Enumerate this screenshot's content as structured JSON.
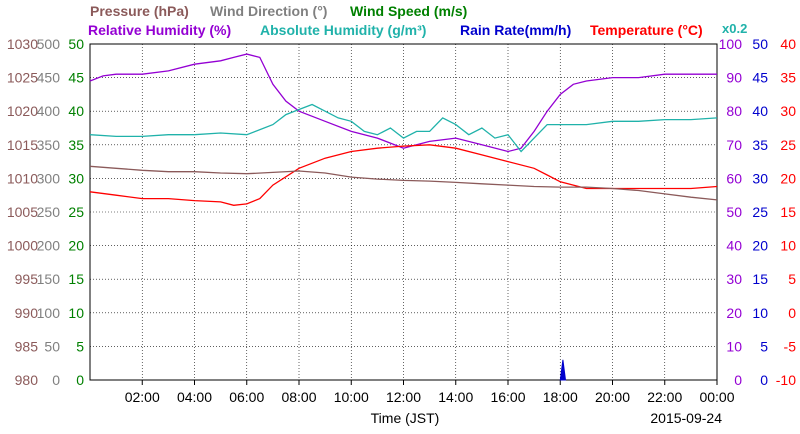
{
  "chart_data": {
    "type": "line",
    "legend": [
      {
        "label": "Pressure (hPa)",
        "color": "#8b5a5a"
      },
      {
        "label": "Wind Direction (°)",
        "color": "#808080"
      },
      {
        "label": "Wind Speed (m/s)",
        "color": "#008000"
      },
      {
        "label": "Relative Humidity (%)",
        "color": "#9400d3"
      },
      {
        "label": "Absolute Humidity (g/m³)",
        "color": "#20b2aa"
      },
      {
        "label": "Rain Rate(mm/h)",
        "color": "#0000cd"
      },
      {
        "label": "Temperature (°C)",
        "color": "#ff0000"
      }
    ],
    "abs_humidity_scale_note": "x0.2",
    "xlabel": "Time (JST)",
    "date": "2015-09-24",
    "x_range_hours": [
      0,
      24
    ],
    "x_ticks": [
      {
        "h": 2,
        "label": "02:00"
      },
      {
        "h": 4,
        "label": "04:00"
      },
      {
        "h": 6,
        "label": "06:00"
      },
      {
        "h": 8,
        "label": "08:00"
      },
      {
        "h": 10,
        "label": "10:00"
      },
      {
        "h": 12,
        "label": "12:00"
      },
      {
        "h": 14,
        "label": "14:00"
      },
      {
        "h": 16,
        "label": "16:00"
      },
      {
        "h": 18,
        "label": "18:00"
      },
      {
        "h": 20,
        "label": "20:00"
      },
      {
        "h": 22,
        "label": "22:00"
      },
      {
        "h": 24,
        "label": "00:00"
      }
    ],
    "axes": {
      "pressure": {
        "color": "#8b5a5a",
        "ticks": [
          "980",
          "985",
          "990",
          "995",
          "1000",
          "1005",
          "1010",
          "1015",
          "1020",
          "1025",
          "1030"
        ]
      },
      "wind_direction": {
        "color": "#808080",
        "ticks": [
          "0",
          "50",
          "100",
          "150",
          "200",
          "250",
          "300",
          "350",
          "400",
          "450",
          "500"
        ]
      },
      "wind_speed": {
        "color": "#008000",
        "ticks": [
          "0",
          "5",
          "10",
          "15",
          "20",
          "25",
          "30",
          "35",
          "40",
          "45",
          "50"
        ]
      },
      "relative_humidity": {
        "color": "#9400d3",
        "ticks": [
          "0",
          "10",
          "20",
          "30",
          "40",
          "50",
          "60",
          "70",
          "80",
          "90",
          "100"
        ]
      },
      "rain_rate": {
        "color": "#0000cd",
        "ticks": [
          "0",
          "5",
          "10",
          "15",
          "20",
          "25",
          "30",
          "35",
          "40",
          "45",
          "50"
        ]
      },
      "temperature": {
        "color": "#ff0000",
        "ticks": [
          "-10",
          "-5",
          "0",
          "5",
          "10",
          "15",
          "20",
          "25",
          "30",
          "35",
          "40"
        ]
      }
    },
    "series": [
      {
        "name": "Relative Humidity (%)",
        "axis": "relative_humidity",
        "color": "#9400d3",
        "points": [
          [
            0,
            89
          ],
          [
            0.5,
            90.5
          ],
          [
            1,
            91
          ],
          [
            2,
            91
          ],
          [
            3,
            92
          ],
          [
            4,
            94
          ],
          [
            5,
            95
          ],
          [
            5.5,
            96
          ],
          [
            6,
            97
          ],
          [
            6.5,
            96
          ],
          [
            7,
            88
          ],
          [
            7.5,
            83
          ],
          [
            8,
            80
          ],
          [
            9,
            77
          ],
          [
            10,
            74
          ],
          [
            11,
            72
          ],
          [
            12,
            69
          ],
          [
            12.5,
            70
          ],
          [
            13,
            71
          ],
          [
            14,
            72
          ],
          [
            15,
            70
          ],
          [
            16,
            68
          ],
          [
            16.5,
            69
          ],
          [
            17,
            74
          ],
          [
            17.5,
            80
          ],
          [
            18,
            85
          ],
          [
            18.5,
            88
          ],
          [
            19,
            89
          ],
          [
            20,
            90
          ],
          [
            21,
            90
          ],
          [
            22,
            91
          ],
          [
            23,
            91
          ],
          [
            24,
            91
          ]
        ]
      },
      {
        "name": "Absolute Humidity (g/m³) x0.2",
        "axis": "relative_humidity",
        "color": "#20b2aa",
        "points": [
          [
            0,
            73
          ],
          [
            1,
            72.5
          ],
          [
            2,
            72.5
          ],
          [
            3,
            73
          ],
          [
            4,
            73
          ],
          [
            5,
            73.5
          ],
          [
            6,
            73
          ],
          [
            7,
            76
          ],
          [
            7.5,
            79
          ],
          [
            8,
            80.5
          ],
          [
            8.5,
            82
          ],
          [
            9,
            80
          ],
          [
            9.5,
            78
          ],
          [
            10,
            77
          ],
          [
            10.5,
            74
          ],
          [
            11,
            73
          ],
          [
            11.5,
            75
          ],
          [
            12,
            72
          ],
          [
            12.5,
            74
          ],
          [
            13,
            74
          ],
          [
            13.5,
            78
          ],
          [
            14,
            76
          ],
          [
            14.5,
            73
          ],
          [
            15,
            75
          ],
          [
            15.5,
            72
          ],
          [
            16,
            73
          ],
          [
            16.5,
            68
          ],
          [
            17,
            72
          ],
          [
            17.5,
            76
          ],
          [
            18,
            76
          ],
          [
            19,
            76
          ],
          [
            20,
            77
          ],
          [
            21,
            77
          ],
          [
            22,
            77.5
          ],
          [
            23,
            77.5
          ],
          [
            24,
            78
          ]
        ]
      },
      {
        "name": "Temperature (°C)",
        "axis": "temperature",
        "color": "#ff0000",
        "points": [
          [
            0,
            18
          ],
          [
            1,
            17.5
          ],
          [
            2,
            17
          ],
          [
            3,
            17
          ],
          [
            4,
            16.7
          ],
          [
            5,
            16.5
          ],
          [
            5.5,
            16
          ],
          [
            6,
            16.2
          ],
          [
            6.5,
            17
          ],
          [
            7,
            19
          ],
          [
            8,
            21.5
          ],
          [
            9,
            23
          ],
          [
            10,
            24
          ],
          [
            11,
            24.5
          ],
          [
            12,
            24.8
          ],
          [
            13,
            25
          ],
          [
            14,
            24.5
          ],
          [
            15,
            23.5
          ],
          [
            16,
            22.5
          ],
          [
            17,
            21.5
          ],
          [
            17.5,
            20.5
          ],
          [
            18,
            19.5
          ],
          [
            18.5,
            19
          ],
          [
            19,
            18.5
          ],
          [
            20,
            18.5
          ],
          [
            21,
            18.5
          ],
          [
            22,
            18.5
          ],
          [
            23,
            18.5
          ],
          [
            24,
            18.8
          ]
        ]
      },
      {
        "name": "Pressure (hPa)",
        "axis": "pressure",
        "color": "#8b5a5a",
        "points": [
          [
            0,
            1011.8
          ],
          [
            1,
            1011.5
          ],
          [
            2,
            1011.2
          ],
          [
            3,
            1011
          ],
          [
            4,
            1011
          ],
          [
            5,
            1010.8
          ],
          [
            6,
            1010.7
          ],
          [
            7,
            1010.9
          ],
          [
            8,
            1011.1
          ],
          [
            9,
            1010.8
          ],
          [
            10,
            1010.2
          ],
          [
            11,
            1009.9
          ],
          [
            12,
            1009.7
          ],
          [
            13,
            1009.6
          ],
          [
            14,
            1009.4
          ],
          [
            15,
            1009.2
          ],
          [
            16,
            1009
          ],
          [
            17,
            1008.8
          ],
          [
            18,
            1008.7
          ],
          [
            19,
            1008.7
          ],
          [
            20,
            1008.5
          ],
          [
            21,
            1008.2
          ],
          [
            22,
            1007.7
          ],
          [
            23,
            1007.2
          ],
          [
            24,
            1006.8
          ]
        ]
      },
      {
        "name": "Rain Rate(mm/h)",
        "axis": "rain_rate",
        "color": "#0000cd",
        "points": [
          [
            18,
            0
          ],
          [
            18.1,
            3
          ],
          [
            18.2,
            0
          ]
        ]
      }
    ]
  }
}
